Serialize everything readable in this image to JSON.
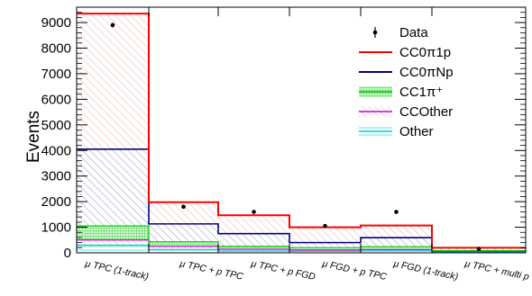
{
  "chart_data": {
    "type": "bar",
    "stacked": true,
    "categories": [
      "μ TPC (1-track)",
      "μ TPC + p TPC",
      "μ TPC + p FGD",
      "μ FGD + p TPC",
      "μ FGD (1-track)",
      "μ TPC + multi p"
    ],
    "ylabel": "Events",
    "xlabel": "",
    "ylim": [
      0,
      9600
    ],
    "yticks": [
      0,
      1000,
      2000,
      3000,
      4000,
      5000,
      6000,
      7000,
      8000,
      9000
    ],
    "legend_position": "top-right",
    "series": [
      {
        "name": "Other",
        "color": "#00cccc",
        "values": [
          300,
          130,
          70,
          60,
          80,
          25
        ]
      },
      {
        "name": "CCOther",
        "color": "#cc00cc",
        "values": [
          200,
          120,
          70,
          50,
          50,
          25
        ]
      },
      {
        "name": "CC1π⁺",
        "color": "#00cc00",
        "values": [
          550,
          180,
          110,
          90,
          110,
          35
        ]
      },
      {
        "name": "CC0πNp",
        "color": "#000080",
        "values": [
          3000,
          700,
          500,
          200,
          350,
          115
        ]
      },
      {
        "name": "CC0π1p",
        "color": "#ff0000",
        "values": [
          5300,
          850,
          720,
          600,
          480,
          0
        ]
      }
    ],
    "data": {
      "name": "Data",
      "values": [
        8900,
        1800,
        1600,
        1050,
        1600,
        150
      ],
      "errors": [
        90,
        40,
        40,
        30,
        40,
        12
      ]
    }
  }
}
